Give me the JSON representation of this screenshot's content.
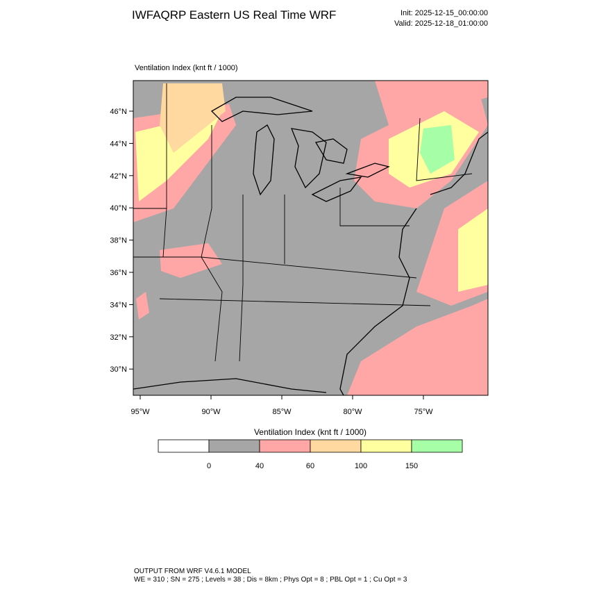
{
  "header": {
    "title": "IWFAQRP Eastern US Real Time WRF",
    "init": "Init: 2025-12-15_00:00:00",
    "valid": "Valid: 2025-12-18_01:00:00"
  },
  "map": {
    "label": "Ventilation Index   (knt ft / 1000)",
    "lat_labels": [
      "46°N",
      "44°N",
      "42°N",
      "40°N",
      "38°N",
      "36°N",
      "34°N",
      "32°N",
      "30°N"
    ],
    "lon_labels": [
      "95°W",
      "90°W",
      "85°W",
      "80°W",
      "75°W"
    ]
  },
  "colorbar": {
    "title": "Ventilation Index  (knt ft / 1000)",
    "ticks": [
      0,
      40,
      60,
      100,
      150
    ],
    "colors": [
      "#ffffff",
      "#a6a6a6",
      "#ffa6a6",
      "#ffd9a0",
      "#ffff9f",
      "#a6ffa6"
    ]
  },
  "footer": {
    "line1": "OUTPUT FROM WRF V4.6.1 MODEL",
    "line2": "WE = 310 ; SN = 275 ; Levels = 38 ; Dis = 8km ; Phys Opt = 8 ; PBL Opt = 1 ; Cu Opt = 3"
  }
}
